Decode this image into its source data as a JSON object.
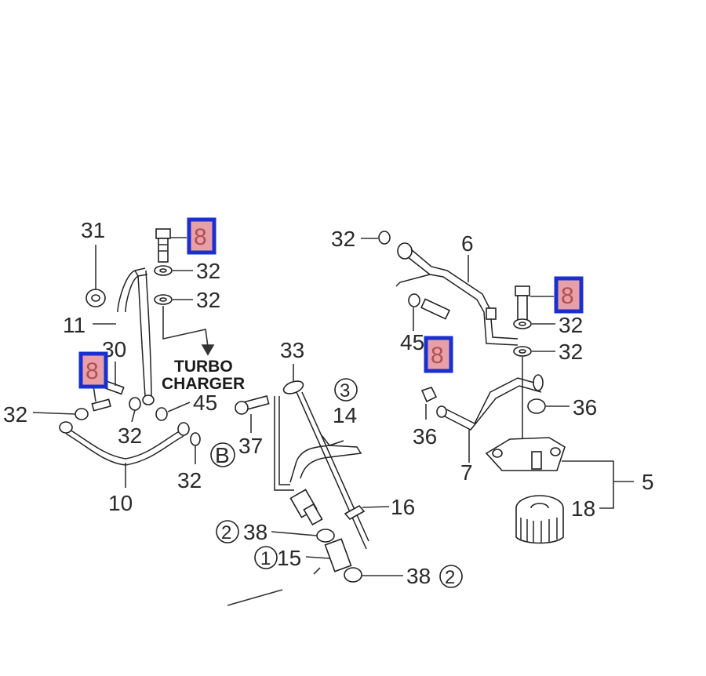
{
  "colors": {
    "highlight_border": "#1a2fd0",
    "highlight_fill": "#e8a0a8",
    "line": "#333333"
  },
  "callouts": {
    "c31": "31",
    "c8a": "8",
    "c32a": "32",
    "c32b": "32",
    "c11": "11",
    "c30": "30",
    "c8b": "8",
    "c32c": "32",
    "c32d": "32",
    "c45a": "45",
    "c10": "10",
    "c32e": "32",
    "cB": "B",
    "c33": "33",
    "c3": "3",
    "c14": "14",
    "c37": "37",
    "c16": "16",
    "c2a": "2",
    "c38a": "38",
    "c1": "1",
    "c15": "15",
    "c38b": "38",
    "c2b": "2",
    "c32f": "32",
    "c6": "6",
    "c8c": "8",
    "c32g": "32",
    "c45b": "45",
    "c8d": "8",
    "c32h": "32",
    "c36a": "36",
    "c36b": "36",
    "c7": "7",
    "c5": "5",
    "c18": "18"
  },
  "notes": {
    "turbo_line1": "TURBO",
    "turbo_line2": "CHARGER"
  }
}
